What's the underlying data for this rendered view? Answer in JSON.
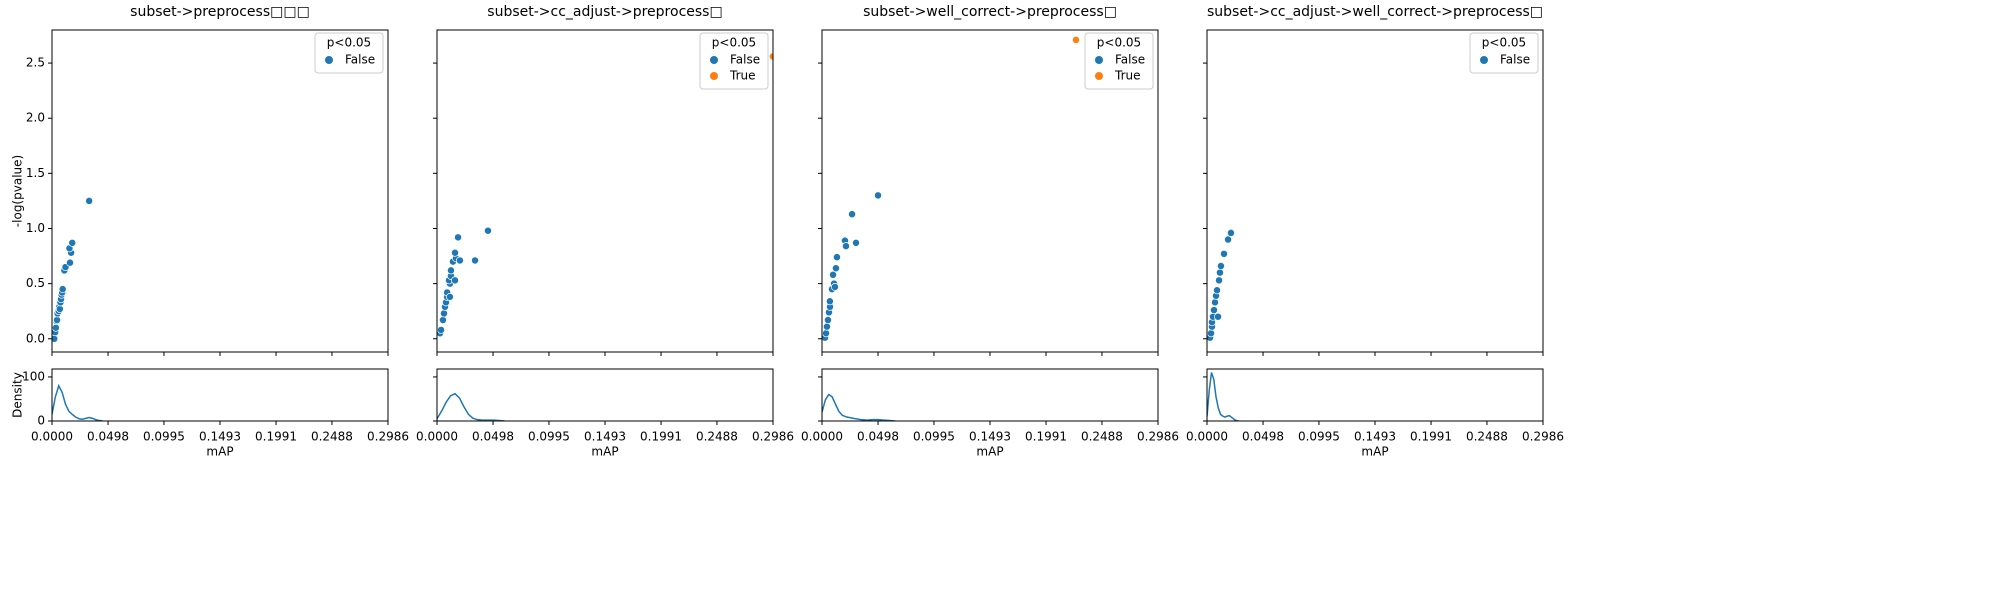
{
  "chart_data": [
    {
      "type": "scatter",
      "title": "subset->preprocess□□□",
      "xlabel": "mAP",
      "ylabel": "-log(pvalue)",
      "xlim": [
        0,
        0.2986
      ],
      "xticks": [
        {
          "value": 0,
          "label": "0.0000"
        },
        0.0498,
        0.0995,
        0.1493,
        0.1991,
        0.2488,
        0.2986
      ],
      "ylim": [
        -0.12,
        2.8
      ],
      "yticks": [
        {
          "value": 0,
          "label": "0.0"
        },
        0.5,
        {
          "value": 1,
          "label": "1.0"
        },
        1.5,
        {
          "value": 2,
          "label": "2.0"
        },
        2.5
      ],
      "legend_title": "p<0.05",
      "legend_loc": "upper right",
      "series": [
        {
          "name": "False",
          "color": "#1f77b4",
          "x": [
            0.002,
            0.0028,
            0.0035,
            0.004,
            0.0045,
            0.005,
            0.006,
            0.0065,
            0.007,
            0.0075,
            0.008,
            0.0085,
            0.009,
            0.0095,
            0.011,
            0.012,
            0.016,
            0.017,
            0.0155,
            0.018,
            0.033
          ],
          "y": [
            0.0,
            0.06,
            0.1,
            0.16,
            0.17,
            0.23,
            0.25,
            0.29,
            0.27,
            0.33,
            0.36,
            0.4,
            0.42,
            0.45,
            0.62,
            0.65,
            0.69,
            0.78,
            0.82,
            0.87,
            1.25
          ]
        }
      ],
      "density": {
        "type": "line",
        "ylabel": "Density",
        "ylim": [
          0,
          118
        ],
        "yticks": [
          0,
          100
        ],
        "color": "#1f77b4",
        "x": [
          0,
          0.003,
          0.006,
          0.009,
          0.012,
          0.015,
          0.018,
          0.021,
          0.024,
          0.027,
          0.03,
          0.033,
          0.036,
          0.04,
          0.045
        ],
        "y": [
          15,
          55,
          80,
          65,
          38,
          22,
          15,
          9,
          5,
          4,
          6,
          8,
          6,
          2,
          0
        ]
      }
    },
    {
      "type": "scatter",
      "title": "subset->cc_adjust->preprocess□",
      "xlabel": "mAP",
      "xlim": [
        0,
        0.2986
      ],
      "xticks": [
        {
          "value": 0,
          "label": "0.0000"
        },
        0.0498,
        0.0995,
        0.1493,
        0.1991,
        0.2488,
        0.2986
      ],
      "legend_title": "p<0.05",
      "legend_loc": "upper right",
      "series": [
        {
          "name": "False",
          "color": "#1f77b4",
          "x": [
            0.0027,
            0.0036,
            0.0053,
            0.0062,
            0.0071,
            0.008,
            0.0089,
            0.009,
            0.0115,
            0.0107,
            0.0124,
            0.0124,
            0.0142,
            0.0169,
            0.016,
            0.0187,
            0.0204,
            0.0338,
            0.0453,
            0.0115,
            0.016
          ],
          "y": [
            0.05,
            0.08,
            0.17,
            0.23,
            0.29,
            0.33,
            0.38,
            0.42,
            0.5,
            0.53,
            0.57,
            0.62,
            0.7,
            0.73,
            0.78,
            0.92,
            0.71,
            0.71,
            0.98,
            0.38,
            0.53
          ]
        },
        {
          "name": "True",
          "color": "#ff7f0e",
          "x": [
            0.2985
          ],
          "y": [
            2.56
          ]
        }
      ],
      "density": {
        "type": "line",
        "color": "#1f77b4",
        "x": [
          0,
          0.004,
          0.008,
          0.012,
          0.016,
          0.02,
          0.024,
          0.028,
          0.032,
          0.036,
          0.04,
          0.045,
          0.05,
          0.055,
          0.06
        ],
        "y": [
          5,
          22,
          42,
          57,
          62,
          52,
          32,
          15,
          6,
          3,
          2,
          2,
          2,
          1,
          0
        ]
      }
    },
    {
      "type": "scatter",
      "title": "subset->well_correct->preprocess□",
      "xlabel": "mAP",
      "xlim": [
        0,
        0.2986
      ],
      "xticks": [
        {
          "value": 0,
          "label": "0.0000"
        },
        0.0498,
        0.0995,
        0.1493,
        0.1991,
        0.2488,
        0.2986
      ],
      "legend_title": "p<0.05",
      "legend_loc": "upper right",
      "series": [
        {
          "name": "False",
          "color": "#1f77b4",
          "x": [
            0.0027,
            0.0036,
            0.0044,
            0.0053,
            0.0062,
            0.0071,
            0.007,
            0.0089,
            0.0107,
            0.0098,
            0.0124,
            0.0133,
            0.0115,
            0.0204,
            0.0213,
            0.0267,
            0.0302,
            0.0498
          ],
          "y": [
            0.01,
            0.05,
            0.11,
            0.17,
            0.24,
            0.29,
            0.34,
            0.45,
            0.5,
            0.58,
            0.64,
            0.74,
            0.47,
            0.89,
            0.84,
            1.13,
            0.87,
            1.3
          ]
        },
        {
          "name": "True",
          "color": "#ff7f0e",
          "x": [
            0.2257
          ],
          "y": [
            2.71
          ]
        }
      ],
      "density": {
        "type": "line",
        "color": "#1f77b4",
        "x": [
          0,
          0.003,
          0.006,
          0.009,
          0.012,
          0.015,
          0.018,
          0.022,
          0.026,
          0.03,
          0.035,
          0.04,
          0.045,
          0.05,
          0.055,
          0.06,
          0.065
        ],
        "y": [
          20,
          48,
          60,
          55,
          38,
          22,
          13,
          9,
          7,
          5,
          3,
          2,
          3,
          3,
          2,
          1,
          0
        ]
      }
    },
    {
      "type": "scatter",
      "title": "subset->cc_adjust->well_correct->preprocess□",
      "xlabel": "mAP",
      "xlim": [
        0,
        0.2986
      ],
      "xticks": [
        {
          "value": 0,
          "label": "0.0000"
        },
        0.0498,
        0.0995,
        0.1493,
        0.1991,
        0.2488,
        0.2986
      ],
      "legend_title": "p<0.05",
      "legend_loc": "upper right",
      "series": [
        {
          "name": "False",
          "color": "#1f77b4",
          "x": [
            0.0027,
            0.0036,
            0.0044,
            0.0044,
            0.0053,
            0.0062,
            0.0071,
            0.008,
            0.0089,
            0.0107,
            0.0115,
            0.0124,
            0.0098,
            0.0151,
            0.0187,
            0.0213
          ],
          "y": [
            0.01,
            0.05,
            0.11,
            0.15,
            0.2,
            0.26,
            0.33,
            0.39,
            0.44,
            0.53,
            0.6,
            0.66,
            0.2,
            0.77,
            0.9,
            0.96
          ]
        }
      ],
      "density": {
        "type": "line",
        "color": "#1f77b4",
        "x": [
          0,
          0.002,
          0.004,
          0.006,
          0.008,
          0.01,
          0.012,
          0.014,
          0.016,
          0.018,
          0.02,
          0.022,
          0.024,
          0.026,
          0.028
        ],
        "y": [
          10,
          70,
          110,
          95,
          55,
          30,
          15,
          11,
          9,
          11,
          12,
          8,
          4,
          1,
          0
        ]
      }
    }
  ]
}
